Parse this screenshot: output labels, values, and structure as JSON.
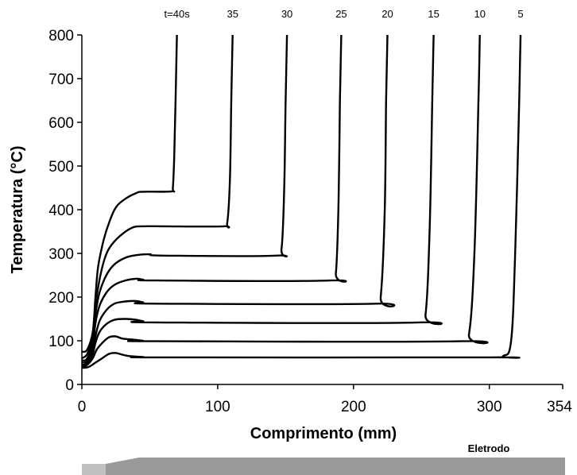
{
  "chart_data": {
    "type": "line",
    "title": "",
    "xlabel": "Comprimento (mm)",
    "ylabel": "Temperatura (°C)",
    "xlim": [
      0,
      354
    ],
    "ylim": [
      0,
      800
    ],
    "x_ticks": [
      "0",
      "100",
      "200",
      "300",
      "354"
    ],
    "y_ticks": [
      "0",
      "100",
      "200",
      "300",
      "400",
      "500",
      "600",
      "700",
      "800"
    ],
    "grid": false,
    "legend": "none",
    "line_color": "#000000",
    "series": [
      {
        "name": "t=40s",
        "label_x": 70,
        "points": [
          [
            0,
            75
          ],
          [
            4,
            80
          ],
          [
            8,
            120
          ],
          [
            10,
            200
          ],
          [
            12,
            270
          ],
          [
            16,
            330
          ],
          [
            20,
            370
          ],
          [
            25,
            405
          ],
          [
            32,
            425
          ],
          [
            40,
            438
          ],
          [
            45,
            441
          ],
          [
            66,
            442
          ],
          [
            67,
            450
          ],
          [
            68,
            520
          ],
          [
            69,
            650
          ],
          [
            70,
            800
          ]
        ]
      },
      {
        "name": "35",
        "label_x": 111,
        "points": [
          [
            0,
            60
          ],
          [
            4,
            70
          ],
          [
            8,
            110
          ],
          [
            10,
            180
          ],
          [
            13,
            240
          ],
          [
            17,
            290
          ],
          [
            22,
            320
          ],
          [
            30,
            345
          ],
          [
            38,
            360
          ],
          [
            45,
            362
          ],
          [
            60,
            362
          ],
          [
            104,
            362
          ],
          [
            107,
            370
          ],
          [
            109,
            470
          ],
          [
            110,
            650
          ],
          [
            111,
            800
          ]
        ]
      },
      {
        "name": "30",
        "label_x": 151,
        "points": [
          [
            0,
            55
          ],
          [
            4,
            60
          ],
          [
            8,
            100
          ],
          [
            10,
            160
          ],
          [
            13,
            210
          ],
          [
            18,
            250
          ],
          [
            24,
            275
          ],
          [
            32,
            290
          ],
          [
            40,
            296
          ],
          [
            50,
            298
          ],
          [
            60,
            295
          ],
          [
            143,
            295
          ],
          [
            147,
            310
          ],
          [
            149,
            450
          ],
          [
            150,
            650
          ],
          [
            151,
            800
          ]
        ]
      },
      {
        "name": "25",
        "label_x": 191,
        "points": [
          [
            0,
            50
          ],
          [
            4,
            55
          ],
          [
            8,
            90
          ],
          [
            10,
            140
          ],
          [
            13,
            180
          ],
          [
            18,
            210
          ],
          [
            24,
            228
          ],
          [
            32,
            238
          ],
          [
            40,
            242
          ],
          [
            45,
            240
          ],
          [
            55,
            238
          ],
          [
            183,
            238
          ],
          [
            187,
            255
          ],
          [
            189,
            420
          ],
          [
            190,
            650
          ],
          [
            191,
            800
          ]
        ]
      },
      {
        "name": "20",
        "label_x": 225,
        "points": [
          [
            0,
            45
          ],
          [
            4,
            50
          ],
          [
            8,
            80
          ],
          [
            10,
            110
          ],
          [
            13,
            145
          ],
          [
            18,
            170
          ],
          [
            24,
            185
          ],
          [
            32,
            190
          ],
          [
            40,
            191
          ],
          [
            45,
            188
          ],
          [
            55,
            185
          ],
          [
            216,
            185
          ],
          [
            220,
            200
          ],
          [
            223,
            400
          ],
          [
            224,
            650
          ],
          [
            225,
            800
          ]
        ]
      },
      {
        "name": "15",
        "label_x": 259,
        "points": [
          [
            0,
            45
          ],
          [
            4,
            48
          ],
          [
            8,
            70
          ],
          [
            10,
            95
          ],
          [
            13,
            120
          ],
          [
            18,
            138
          ],
          [
            24,
            148
          ],
          [
            32,
            150
          ],
          [
            40,
            148
          ],
          [
            45,
            145
          ],
          [
            55,
            142
          ],
          [
            248,
            142
          ],
          [
            253,
            160
          ],
          [
            256,
            350
          ],
          [
            258,
            650
          ],
          [
            259,
            800
          ]
        ]
      },
      {
        "name": "10",
        "label_x": 293,
        "points": [
          [
            0,
            40
          ],
          [
            4,
            45
          ],
          [
            8,
            60
          ],
          [
            11,
            80
          ],
          [
            15,
            95
          ],
          [
            20,
            108
          ],
          [
            25,
            110
          ],
          [
            30,
            105
          ],
          [
            40,
            102
          ],
          [
            45,
            100
          ],
          [
            55,
            99
          ],
          [
            279,
            99
          ],
          [
            285,
            115
          ],
          [
            289,
            300
          ],
          [
            292,
            650
          ],
          [
            293,
            800
          ]
        ]
      },
      {
        "name": "5",
        "label_x": 323,
        "points": [
          [
            0,
            38
          ],
          [
            5,
            40
          ],
          [
            10,
            50
          ],
          [
            15,
            60
          ],
          [
            20,
            70
          ],
          [
            25,
            72
          ],
          [
            30,
            68
          ],
          [
            35,
            65
          ],
          [
            45,
            63
          ],
          [
            60,
            62
          ],
          [
            300,
            62
          ],
          [
            310,
            65
          ],
          [
            316,
            100
          ],
          [
            319,
            300
          ],
          [
            322,
            650
          ],
          [
            323,
            800
          ]
        ]
      }
    ]
  },
  "electrode": {
    "label": "Eletrodo",
    "fill_color": "#999999",
    "tip_color": "#c0c0c0"
  }
}
